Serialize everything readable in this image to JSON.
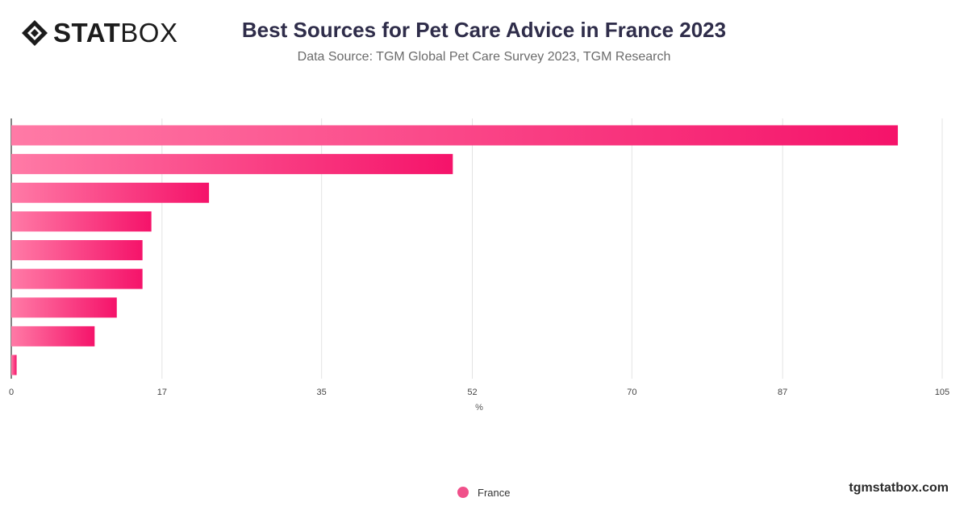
{
  "brand": {
    "logo_bold": "STAT",
    "logo_light": "BOX",
    "site": "tgmstatbox.com"
  },
  "title": "Best Sources for Pet Care Advice in France 2023",
  "subtitle": "Data Source: TGM Global Pet Care Survey 2023, TGM Research",
  "colors": {
    "bar_start": "#ff7aa6",
    "bar_end": "#f5136a",
    "grid": "#e3e3e3",
    "axis": "#333333",
    "legend": "#f0508a"
  },
  "chart_data": {
    "type": "bar",
    "orientation": "horizontal",
    "categories": [
      "",
      "",
      "",
      "",
      "",
      "",
      "",
      "",
      ""
    ],
    "series": [
      {
        "name": "France",
        "values": [
          100,
          49.8,
          22.3,
          15.8,
          14.8,
          14.8,
          11.9,
          9.4,
          0.6
        ]
      }
    ],
    "xlabel": "%",
    "xlim": [
      0,
      105
    ],
    "xticks": [
      0,
      17,
      35,
      52,
      70,
      87,
      105
    ],
    "grid": true,
    "legend_position": "bottom"
  },
  "legend": {
    "label": "France"
  }
}
